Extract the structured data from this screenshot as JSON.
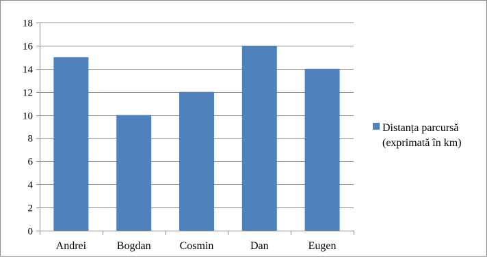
{
  "chart_data": {
    "type": "bar",
    "categories": [
      "Andrei",
      "Bogdan",
      "Cosmin",
      "Dan",
      "Eugen"
    ],
    "series": [
      {
        "name": "Distanța parcursă (exprimată în km)",
        "name_lines": [
          "Distanța parcursă",
          "(exprimată în km)"
        ],
        "values": [
          15,
          10,
          12,
          16,
          14
        ],
        "color": "#4f81bd"
      }
    ],
    "title": "",
    "xlabel": "",
    "ylabel": "",
    "ylim": [
      0,
      18
    ],
    "yticks": [
      0,
      2,
      4,
      6,
      8,
      10,
      12,
      14,
      16,
      18
    ],
    "grid": true,
    "legend_position": "right"
  }
}
